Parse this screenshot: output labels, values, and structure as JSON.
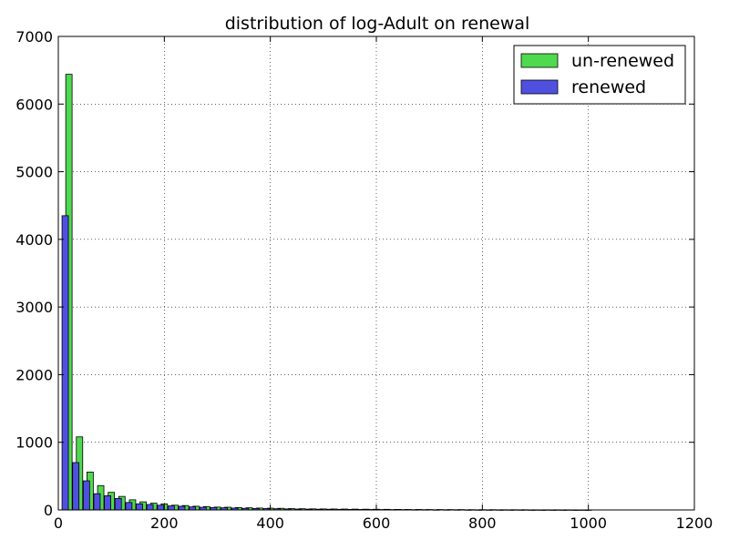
{
  "chart_data": {
    "type": "bar",
    "title": "distribution of log-Adult on renewal",
    "xlabel": "",
    "ylabel": "",
    "xlim": [
      0,
      1200
    ],
    "ylim": [
      0,
      7000
    ],
    "x_ticks": [
      0,
      200,
      400,
      600,
      800,
      1000,
      1200
    ],
    "y_ticks": [
      0,
      1000,
      2000,
      3000,
      4000,
      5000,
      6000,
      7000
    ],
    "grid": true,
    "legend_position": "top-right",
    "bin_width": 20,
    "x": [
      20,
      40,
      60,
      80,
      100,
      120,
      140,
      160,
      180,
      200,
      220,
      240,
      260,
      280,
      300,
      320,
      340,
      360,
      380,
      400,
      420,
      440,
      460,
      480,
      500,
      520,
      540,
      560,
      580,
      600,
      620,
      640,
      660,
      680,
      700,
      720,
      740,
      760,
      780,
      800,
      820,
      840,
      860,
      880,
      900,
      920,
      940,
      960,
      980,
      1000
    ],
    "series": [
      {
        "name": "un-renewed",
        "color": "#4fd94f",
        "values": [
          6440,
          1080,
          560,
          360,
          260,
          200,
          150,
          120,
          100,
          90,
          70,
          65,
          55,
          50,
          42,
          40,
          35,
          32,
          28,
          26,
          24,
          20,
          18,
          16,
          15,
          14,
          13,
          12,
          11,
          10,
          9,
          8,
          7,
          7,
          6,
          6,
          5,
          5,
          4,
          4,
          4,
          3,
          3,
          3,
          2,
          2,
          2,
          2,
          1,
          1
        ]
      },
      {
        "name": "renewed",
        "color": "#5050e0",
        "values": [
          4350,
          700,
          430,
          240,
          210,
          170,
          110,
          90,
          80,
          70,
          60,
          55,
          45,
          40,
          36,
          32,
          28,
          24,
          22,
          20,
          18,
          15,
          13,
          12,
          11,
          10,
          9,
          8,
          7,
          7,
          6,
          5,
          5,
          4,
          4,
          3,
          3,
          3,
          2,
          2,
          2,
          2,
          2,
          2,
          1,
          1,
          1,
          1,
          1,
          1
        ]
      }
    ]
  }
}
